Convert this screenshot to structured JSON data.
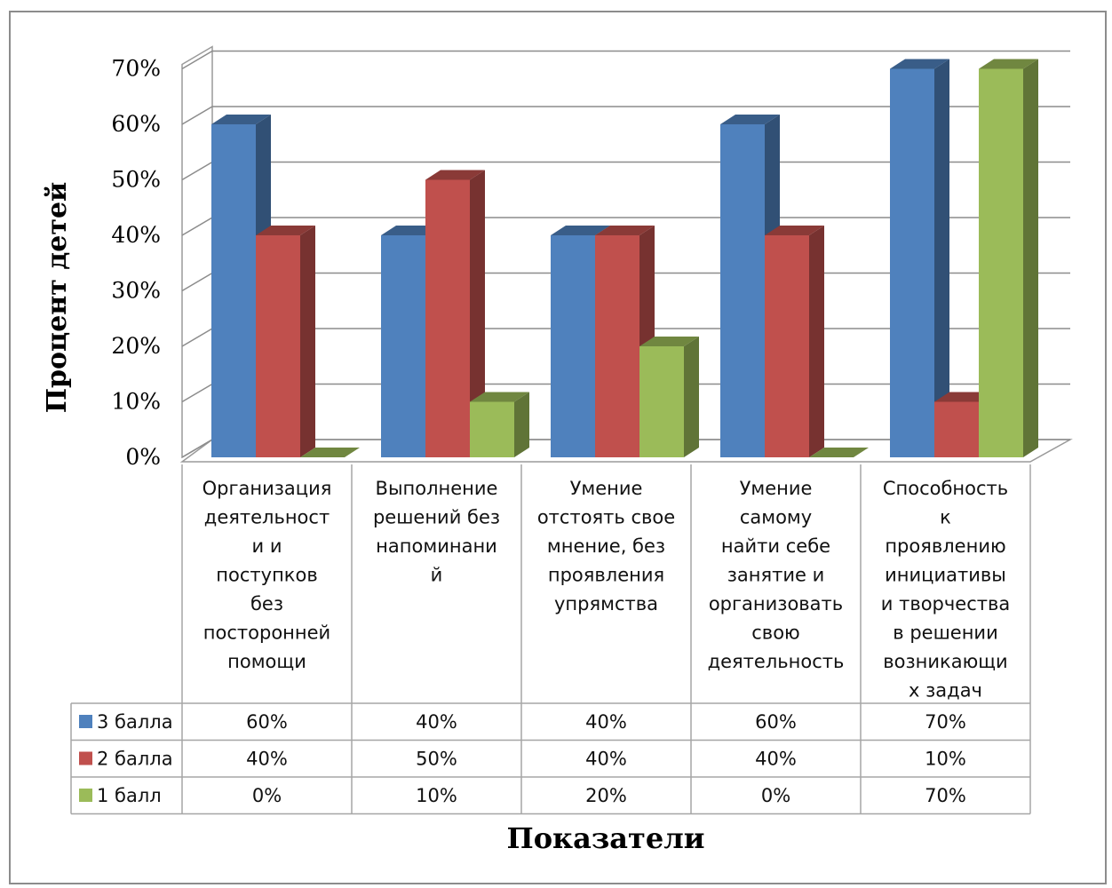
{
  "chart_data": {
    "type": "bar",
    "style": "3d-clustered-column-with-data-table",
    "ylabel": "Процент детей",
    "xlabel": "Показатели",
    "ylim": [
      0,
      70
    ],
    "y_ticks": [
      "0%",
      "10%",
      "20%",
      "30%",
      "40%",
      "50%",
      "60%",
      "70%"
    ],
    "grid": true,
    "categories": [
      "Организация деятельност и и поступков без посторонней помощи",
      "Выполнение решений без напоминани й",
      "Умение отстоять свое мнение, без проявления упрямства",
      "Умение самому найти себе занятие и организовать свою деятельность",
      "Способность к проявлению инициативы и творчества в решении возникающи х задач"
    ],
    "category_lines": [
      [
        "Организация",
        "деятельност",
        "и и",
        "поступков",
        "без",
        "посторонней",
        "помощи"
      ],
      [
        "Выполнение",
        "решений без",
        "напоминани",
        "й"
      ],
      [
        "Умение",
        "отстоять свое",
        "мнение, без",
        "проявления",
        "упрямства"
      ],
      [
        "Умение",
        "самому",
        "найти себе",
        "занятие и",
        "организовать",
        "свою",
        "деятельность"
      ],
      [
        "Способность",
        "к",
        "проявлению",
        "инициативы",
        "и творчества",
        "в решении",
        "возникающи",
        "х задач"
      ]
    ],
    "series": [
      {
        "name": "3 балла",
        "color": "#4f81bd",
        "values": [
          60,
          40,
          40,
          60,
          70
        ],
        "labels": [
          "60%",
          "40%",
          "40%",
          "60%",
          "70%"
        ]
      },
      {
        "name": "2 балла",
        "color": "#c0504d",
        "values": [
          40,
          50,
          40,
          40,
          10
        ],
        "labels": [
          "40%",
          "50%",
          "40%",
          "40%",
          "10%"
        ]
      },
      {
        "name": "1 балл",
        "color": "#9bbb59",
        "values": [
          0,
          10,
          20,
          0,
          70
        ],
        "labels": [
          "0%",
          "10%",
          "20%",
          "0%",
          "70%"
        ]
      }
    ],
    "legend": "data-table-left"
  }
}
